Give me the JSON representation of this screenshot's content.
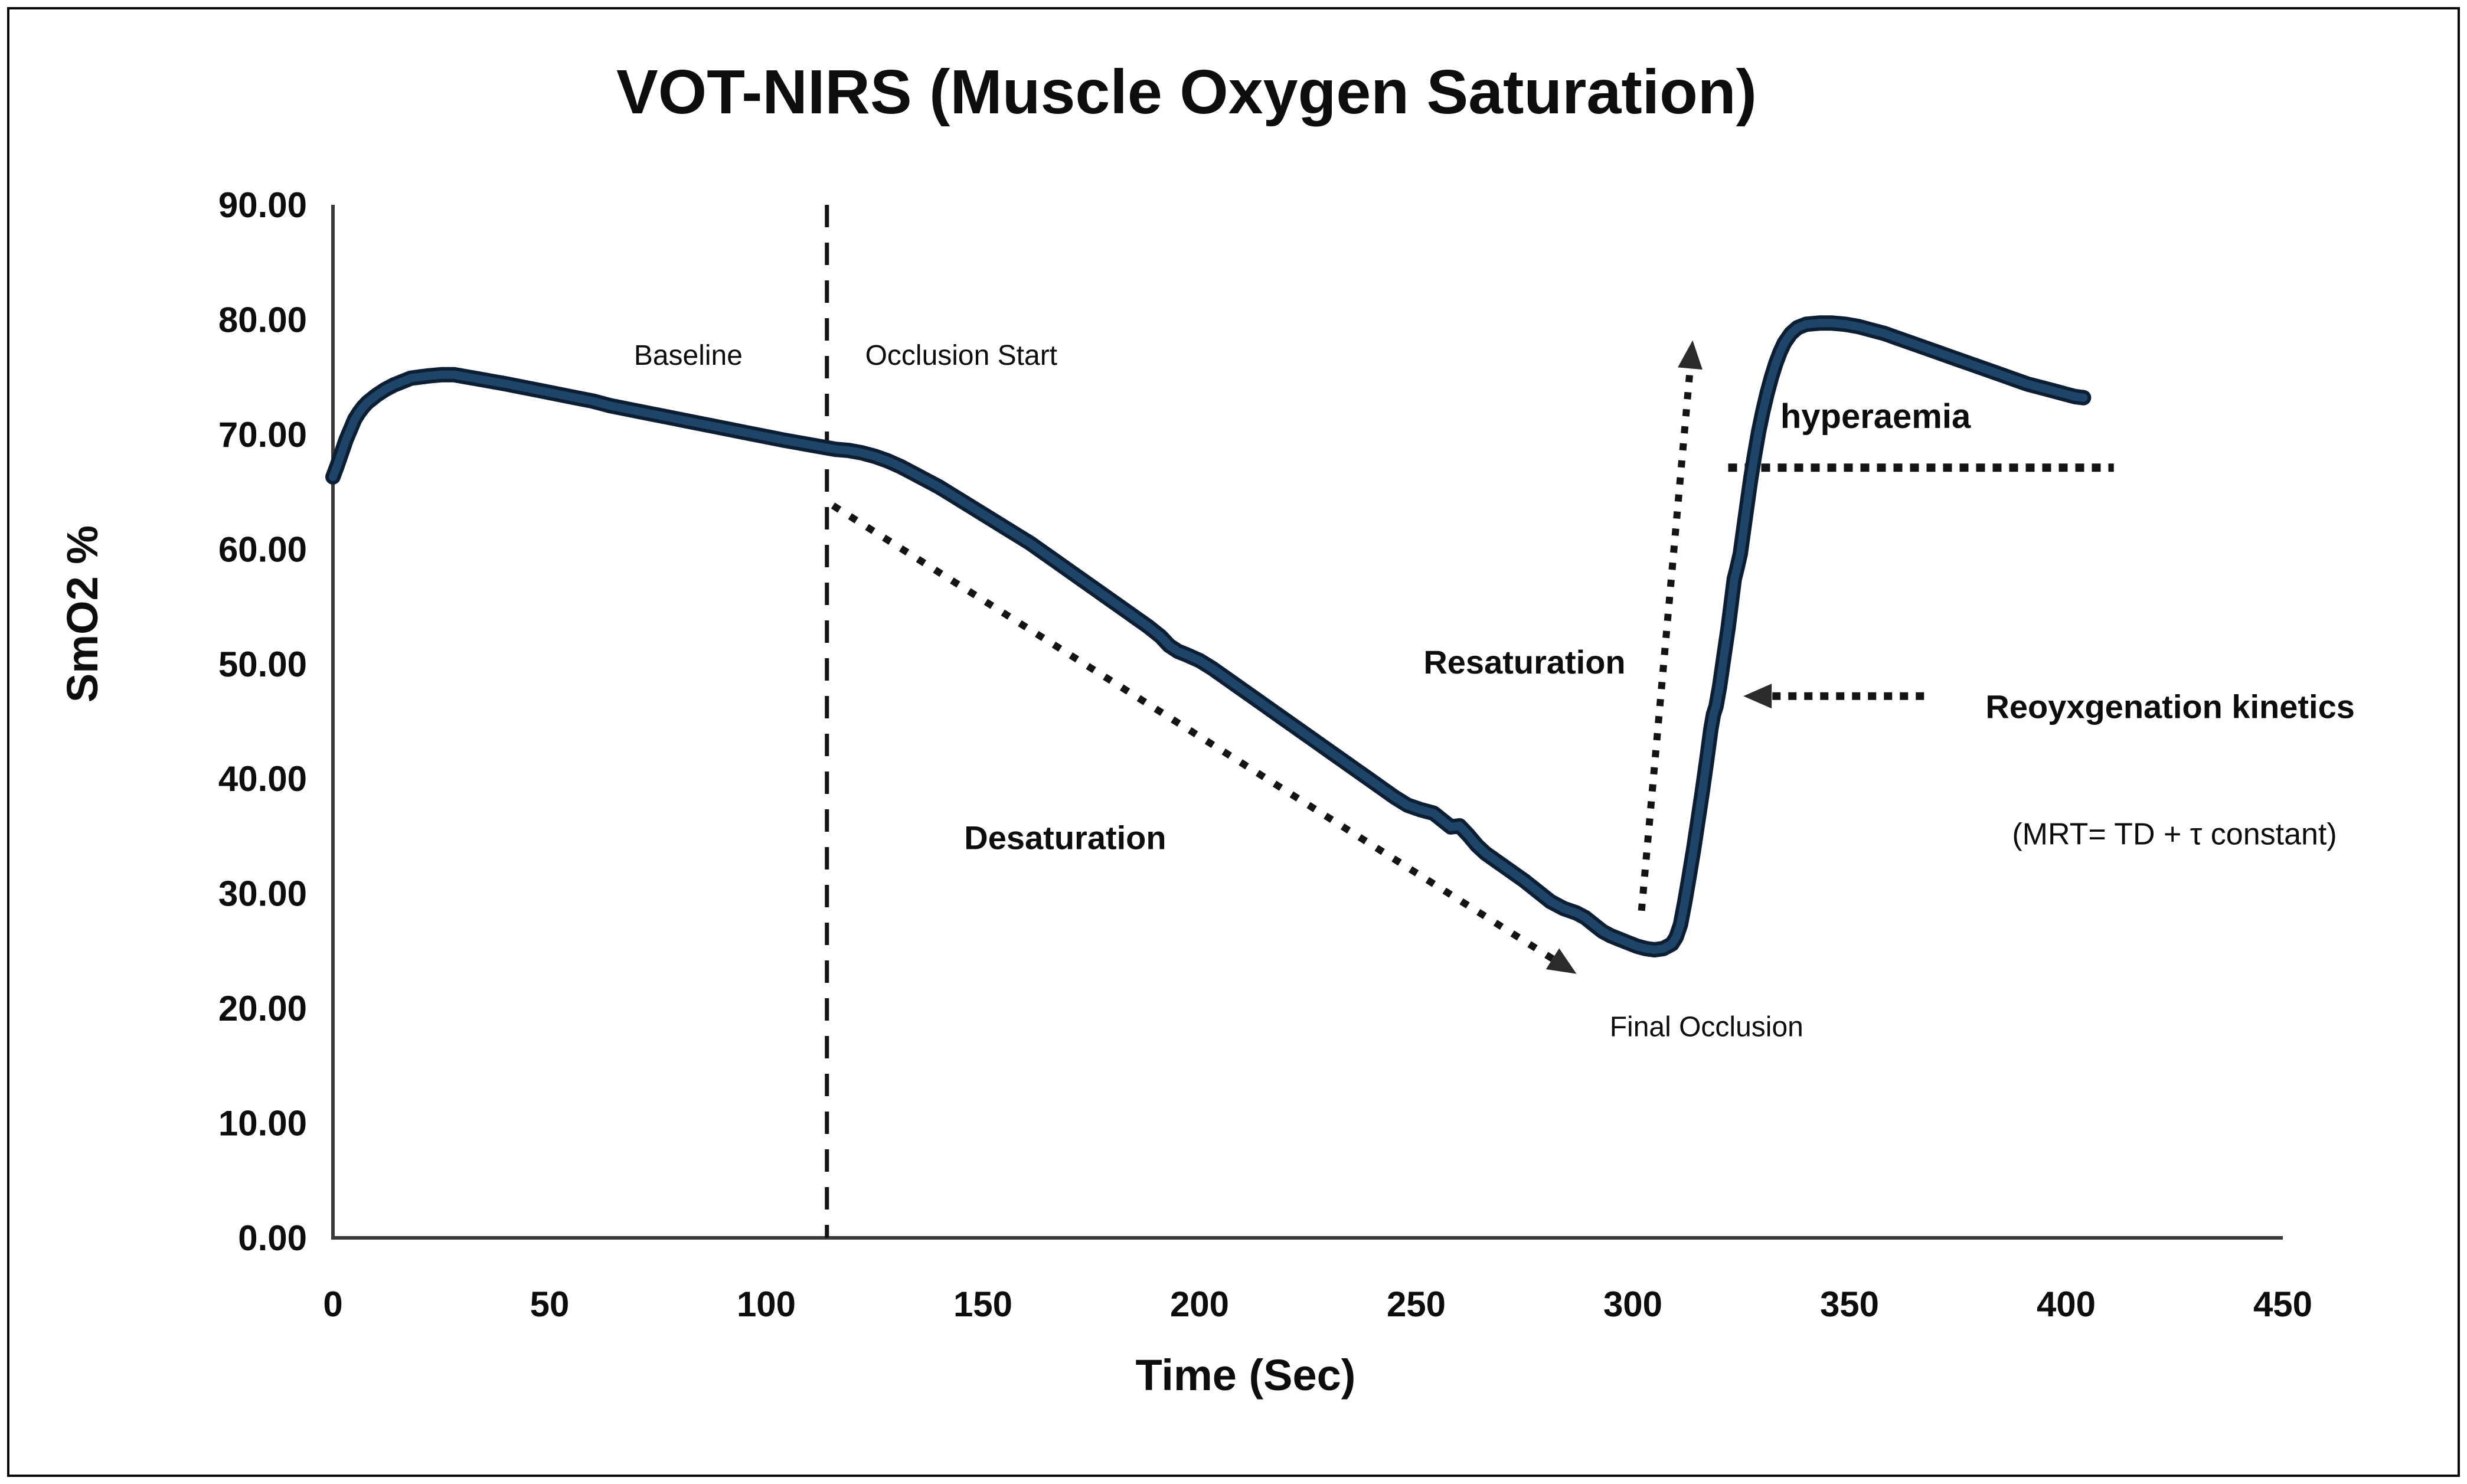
{
  "figure": {
    "title": "VOT-NIRS (Muscle Oxygen Saturation)",
    "y_axis_label": "SmO2 %",
    "x_axis_label": "Time (Sec)"
  },
  "chart_data": {
    "type": "line",
    "title": "VOT-NIRS (Muscle Oxygen Saturation)",
    "xlabel": "Time (Sec)",
    "ylabel": "SmO2 %",
    "xlim": [
      0,
      450
    ],
    "ylim": [
      0,
      90
    ],
    "grid": false,
    "legend": "none",
    "line_color": "#1e4468",
    "line_edge_color": "#0c1e33",
    "annotation_color": "#141414",
    "x_ticks": {
      "values": [
        0,
        50,
        100,
        150,
        200,
        250,
        300,
        350,
        400,
        450
      ],
      "labels": [
        "0",
        "50",
        "100",
        "150",
        "200",
        "250",
        "300",
        "350",
        "400",
        "450"
      ]
    },
    "y_ticks": {
      "values": [
        0,
        10,
        20,
        30,
        40,
        50,
        60,
        70,
        80,
        90
      ],
      "labels": [
        "0.00",
        "10.00",
        "20.00",
        "30.00",
        "40.00",
        "50.00",
        "60.00",
        "70.00",
        "80.00",
        "90.00"
      ]
    },
    "series": [
      {
        "name": "SmO2",
        "points": [
          [
            0,
            66.3
          ],
          [
            1,
            67.3
          ],
          [
            2,
            68.4
          ],
          [
            3,
            69.5
          ],
          [
            4,
            70.4
          ],
          [
            5,
            71.3
          ],
          [
            6,
            71.9
          ],
          [
            7,
            72.4
          ],
          [
            8,
            72.8
          ],
          [
            10,
            73.4
          ],
          [
            12,
            73.9
          ],
          [
            14,
            74.3
          ],
          [
            16,
            74.6
          ],
          [
            18,
            74.9
          ],
          [
            20,
            75.0
          ],
          [
            22,
            75.1
          ],
          [
            25,
            75.2
          ],
          [
            28,
            75.2
          ],
          [
            31,
            75.0
          ],
          [
            34,
            74.8
          ],
          [
            37,
            74.6
          ],
          [
            40,
            74.4
          ],
          [
            44,
            74.1
          ],
          [
            48,
            73.8
          ],
          [
            52,
            73.5
          ],
          [
            56,
            73.2
          ],
          [
            60,
            72.9
          ],
          [
            64,
            72.5
          ],
          [
            68,
            72.2
          ],
          [
            72,
            71.9
          ],
          [
            76,
            71.6
          ],
          [
            80,
            71.3
          ],
          [
            84,
            71.0
          ],
          [
            88,
            70.7
          ],
          [
            92,
            70.4
          ],
          [
            96,
            70.1
          ],
          [
            100,
            69.8
          ],
          [
            104,
            69.5
          ],
          [
            107,
            69.3
          ],
          [
            110,
            69.1
          ],
          [
            113,
            68.9
          ],
          [
            116,
            68.7
          ],
          [
            119,
            68.6
          ],
          [
            122,
            68.4
          ],
          [
            125,
            68.1
          ],
          [
            128,
            67.7
          ],
          [
            131,
            67.2
          ],
          [
            134,
            66.6
          ],
          [
            137,
            66.0
          ],
          [
            140,
            65.4
          ],
          [
            143,
            64.7
          ],
          [
            146,
            64.0
          ],
          [
            149,
            63.3
          ],
          [
            152,
            62.6
          ],
          [
            155,
            61.9
          ],
          [
            158,
            61.2
          ],
          [
            161,
            60.5
          ],
          [
            164,
            59.7
          ],
          [
            167,
            58.9
          ],
          [
            170,
            58.1
          ],
          [
            173,
            57.3
          ],
          [
            176,
            56.5
          ],
          [
            179,
            55.7
          ],
          [
            182,
            54.9
          ],
          [
            185,
            54.1
          ],
          [
            188,
            53.3
          ],
          [
            191,
            52.4
          ],
          [
            193,
            51.6
          ],
          [
            195,
            51.1
          ],
          [
            197,
            50.8
          ],
          [
            200,
            50.3
          ],
          [
            203,
            49.6
          ],
          [
            206,
            48.8
          ],
          [
            209,
            48.0
          ],
          [
            212,
            47.2
          ],
          [
            215,
            46.4
          ],
          [
            218,
            45.6
          ],
          [
            221,
            44.8
          ],
          [
            224,
            44.0
          ],
          [
            227,
            43.2
          ],
          [
            230,
            42.4
          ],
          [
            233,
            41.6
          ],
          [
            236,
            40.8
          ],
          [
            239,
            40.0
          ],
          [
            242,
            39.2
          ],
          [
            245,
            38.4
          ],
          [
            248,
            37.7
          ],
          [
            251,
            37.3
          ],
          [
            254,
            37.0
          ],
          [
            256,
            36.4
          ],
          [
            258,
            35.8
          ],
          [
            260,
            35.9
          ],
          [
            262,
            35.1
          ],
          [
            264,
            34.2
          ],
          [
            266,
            33.5
          ],
          [
            269,
            32.7
          ],
          [
            272,
            31.9
          ],
          [
            275,
            31.1
          ],
          [
            278,
            30.2
          ],
          [
            281,
            29.3
          ],
          [
            284,
            28.7
          ],
          [
            287,
            28.3
          ],
          [
            289,
            27.9
          ],
          [
            291,
            27.3
          ],
          [
            293,
            26.7
          ],
          [
            295,
            26.3
          ],
          [
            297,
            26.0
          ],
          [
            299,
            25.7
          ],
          [
            301,
            25.4
          ],
          [
            303,
            25.2
          ],
          [
            305,
            25.1
          ],
          [
            307,
            25.2
          ],
          [
            309,
            25.6
          ],
          [
            310,
            26.2
          ],
          [
            311,
            27.3
          ],
          [
            312,
            29.3
          ],
          [
            313,
            31.5
          ],
          [
            314,
            33.8
          ],
          [
            315,
            36.3
          ],
          [
            316,
            38.8
          ],
          [
            317,
            41.5
          ],
          [
            318,
            44.3
          ],
          [
            318.6,
            45.6
          ],
          [
            319.2,
            46.3
          ],
          [
            320,
            48.0
          ],
          [
            321,
            50.6
          ],
          [
            322,
            53.2
          ],
          [
            322.8,
            55.6
          ],
          [
            323.4,
            57.4
          ],
          [
            324,
            58.3
          ],
          [
            324.8,
            59.6
          ],
          [
            325.6,
            61.8
          ],
          [
            326.4,
            64.0
          ],
          [
            327.2,
            66.1
          ],
          [
            328,
            68.0
          ],
          [
            329,
            70.2
          ],
          [
            330,
            72.0
          ],
          [
            331,
            73.6
          ],
          [
            332,
            75.0
          ],
          [
            333,
            76.2
          ],
          [
            334,
            77.2
          ],
          [
            335,
            78.0
          ],
          [
            336.5,
            78.8
          ],
          [
            338,
            79.3
          ],
          [
            340,
            79.6
          ],
          [
            343,
            79.7
          ],
          [
            346,
            79.7
          ],
          [
            349,
            79.6
          ],
          [
            352,
            79.4
          ],
          [
            355,
            79.1
          ],
          [
            358,
            78.8
          ],
          [
            361,
            78.4
          ],
          [
            364,
            78.0
          ],
          [
            367,
            77.6
          ],
          [
            370,
            77.2
          ],
          [
            373,
            76.8
          ],
          [
            376,
            76.4
          ],
          [
            379,
            76.0
          ],
          [
            382,
            75.6
          ],
          [
            385,
            75.2
          ],
          [
            388,
            74.8
          ],
          [
            391,
            74.4
          ],
          [
            394,
            74.1
          ],
          [
            397,
            73.8
          ],
          [
            400,
            73.5
          ],
          [
            402,
            73.3
          ],
          [
            404,
            73.2
          ]
        ]
      }
    ],
    "event_markers": {
      "baseline_smo2_pct": 75,
      "occlusion_start_sec": 114,
      "nadir_smo2_pct": 25.1,
      "nadir_sec": 305,
      "peak_smo2_pct": 79.7,
      "peak_sec": 343,
      "baseline_reference_smo2_pct": 67.1,
      "end_smo2_pct": 73.2,
      "end_sec": 404
    },
    "annotations": [
      {
        "id": "baseline",
        "text": "Baseline",
        "t": 82,
        "v": 77.0,
        "bold": false
      },
      {
        "id": "occlusion-start",
        "text": "Occlusion Start",
        "t": 145,
        "v": 77.0,
        "bold": false
      },
      {
        "id": "desaturation",
        "text": "Desaturation",
        "t": 169,
        "v": 34.8,
        "bold": true
      },
      {
        "id": "final-occlusion",
        "text": "Final Occlusion",
        "t": 317,
        "v": 18.5,
        "bold": false
      },
      {
        "id": "resaturation",
        "text": "Resaturation",
        "t": 275,
        "v": 50.1,
        "bold": true
      },
      {
        "id": "hyperaemia",
        "text": "hyperaemia",
        "t": 356,
        "v": 71.5,
        "bold": true
      },
      {
        "id": "reoxygenation-kinetics",
        "text": "Reoyxgenation kinetics",
        "t": 424,
        "v": 46.2,
        "bold": true
      },
      {
        "id": "mrt-formula",
        "text": "(MRT= TD + τ constant)",
        "t": 425,
        "v": 35.2,
        "bold": false
      }
    ],
    "arrows": [
      {
        "id": "desaturation-arrow",
        "from": [
          115.4,
          63.8
        ],
        "to": [
          287.0,
          23.0
        ],
        "style": "dotted"
      },
      {
        "id": "resaturation-arrow",
        "from": [
          302.0,
          28.5
        ],
        "to": [
          313.8,
          78.2
        ],
        "style": "dotted"
      },
      {
        "id": "reoxygenation-arrow",
        "from": [
          367.2,
          47.2
        ],
        "to": [
          325.5,
          47.2
        ],
        "style": "dotted"
      }
    ],
    "reference_lines": [
      {
        "id": "occlusion-start-line",
        "orientation": "vertical",
        "t": 114,
        "v_from": 0,
        "v_to": 90,
        "style": "dashed"
      },
      {
        "id": "baseline-reference-line",
        "orientation": "horizontal",
        "v": 67.1,
        "t_from": 322,
        "t_to": 411,
        "style": "dotted"
      }
    ]
  }
}
